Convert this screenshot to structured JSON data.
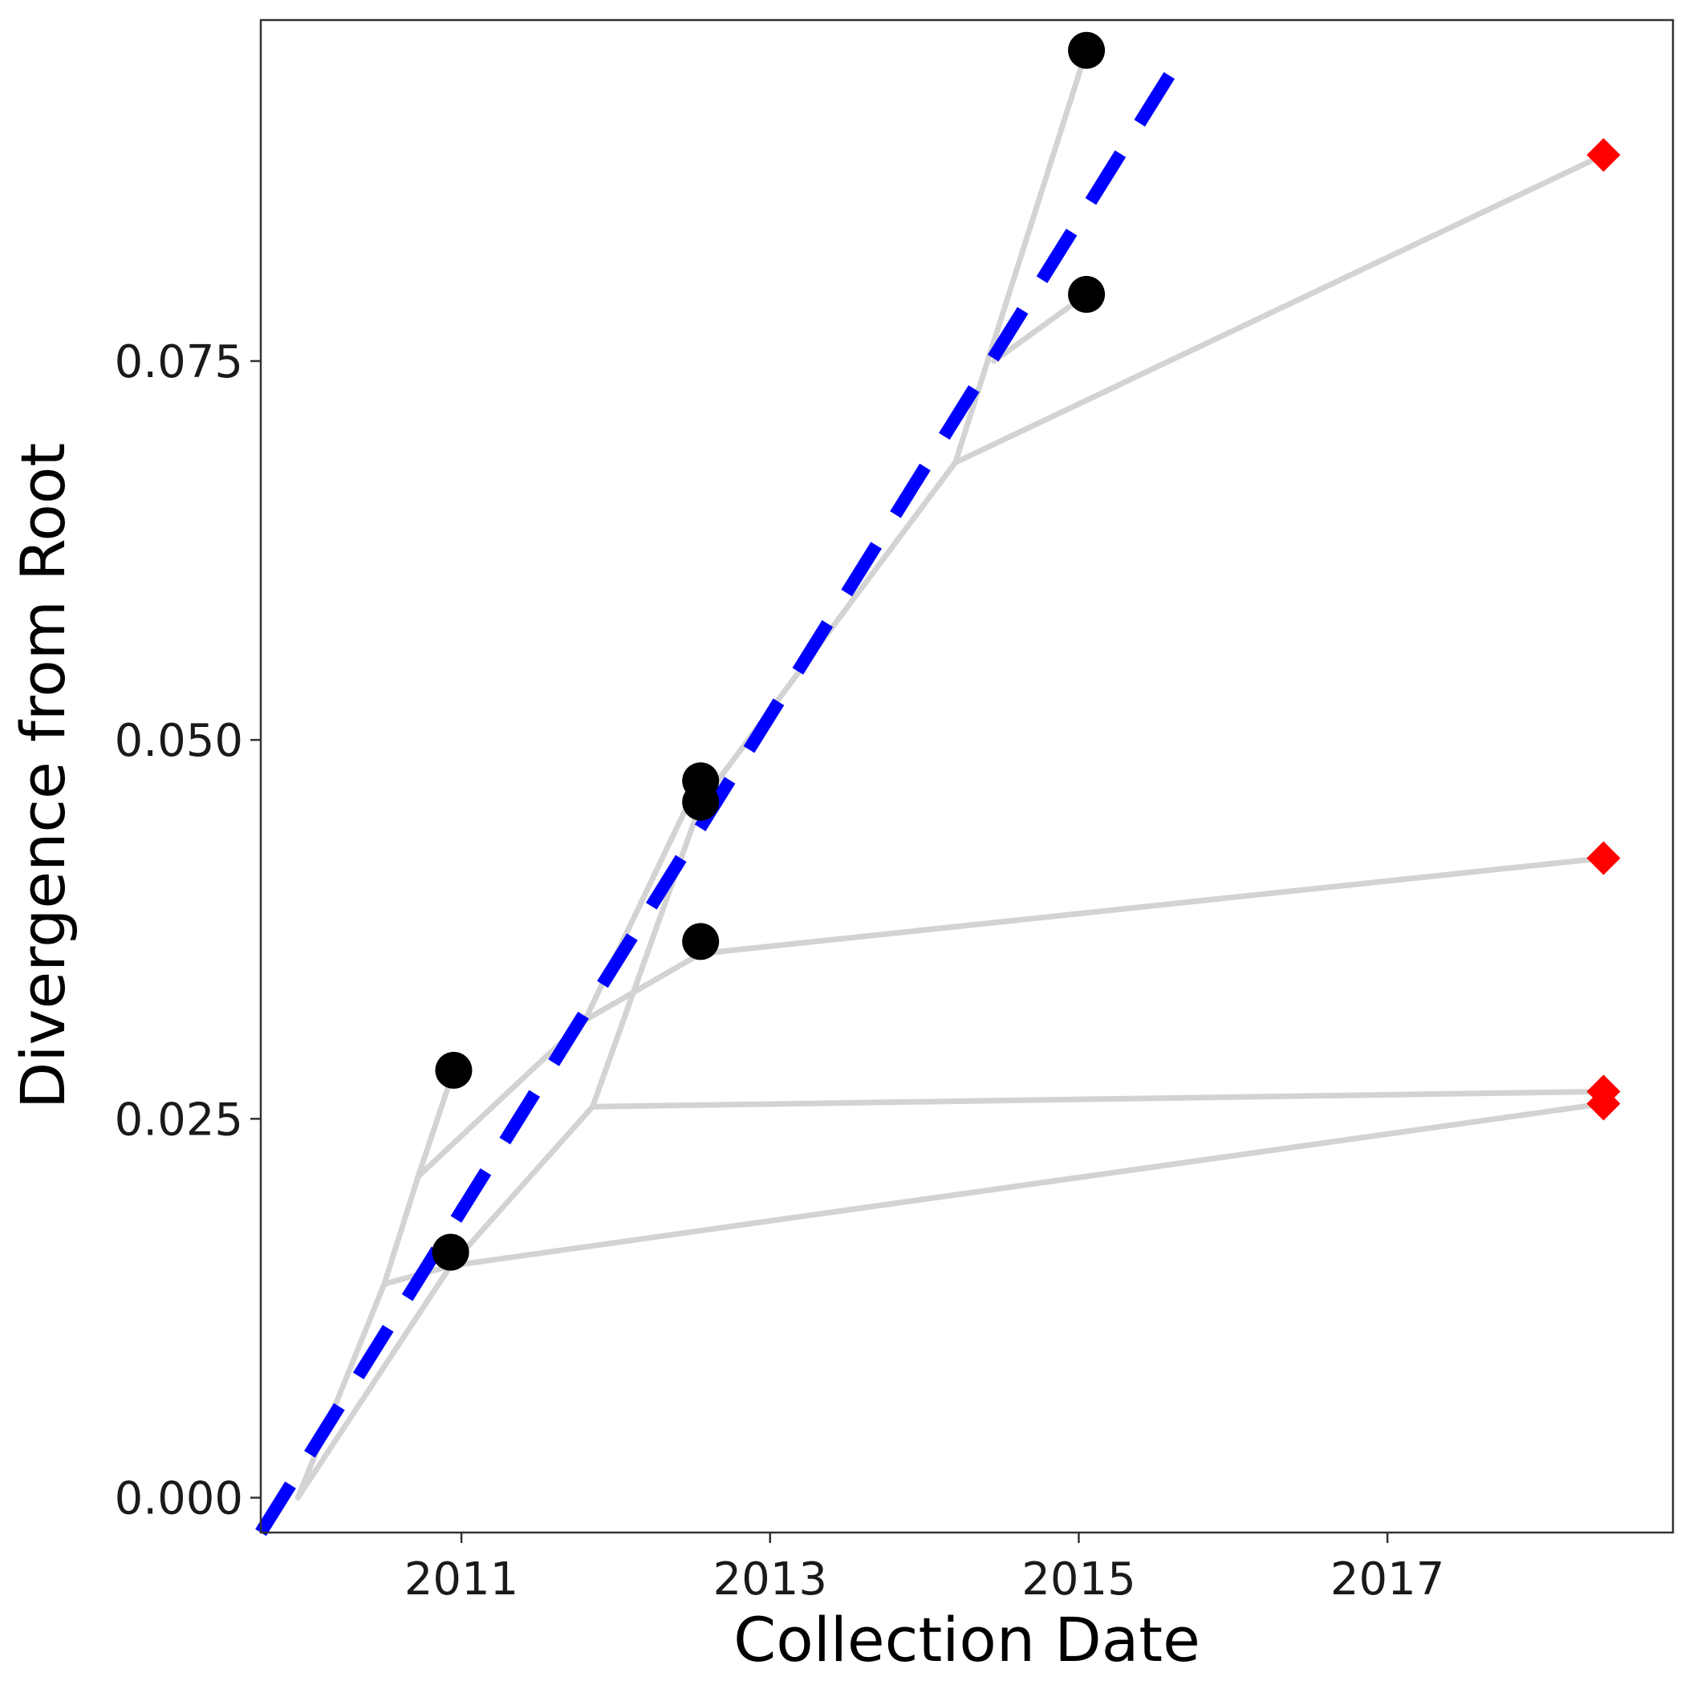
{
  "chart_data": {
    "type": "scatter",
    "xlabel": "Collection Date",
    "ylabel": "Divergence from Root",
    "xlim": [
      2009.7,
      2018.85
    ],
    "ylim": [
      -0.0023,
      0.0975
    ],
    "x_ticks": [
      2011,
      2013,
      2015,
      2017
    ],
    "y_ticks": [
      0.0,
      0.025,
      0.05,
      0.075
    ],
    "x_tick_labels": [
      "2011",
      "2013",
      "2015",
      "2017"
    ],
    "y_tick_labels": [
      "0.000",
      "0.025",
      "0.050",
      "0.075"
    ],
    "grid": false,
    "colors": {
      "tips": "#000000",
      "excluded_tips": "#ff0000",
      "regression": "#0000ff",
      "tree": "#d3d3d3"
    },
    "regression_line": {
      "style": "dashed",
      "points": [
        [
          2009.7,
          -0.0023
        ],
        [
          2015.7,
          0.0957
        ]
      ]
    },
    "tree_edges": [
      [
        [
          2009.94,
          0.0
        ],
        [
          2010.5,
          0.0141
        ]
      ],
      [
        [
          2009.94,
          0.0
        ],
        [
          2010.93,
          0.0153
        ]
      ],
      [
        [
          2010.5,
          0.0141
        ],
        [
          2010.93,
          0.0153
        ]
      ],
      [
        [
          2010.5,
          0.0141
        ],
        [
          2010.72,
          0.0212
        ]
      ],
      [
        [
          2010.72,
          0.0212
        ],
        [
          2010.95,
          0.0282
        ]
      ],
      [
        [
          2010.72,
          0.0212
        ],
        [
          2011.8,
          0.0315
        ]
      ],
      [
        [
          2011.8,
          0.0315
        ],
        [
          2012.55,
          0.0475
        ]
      ],
      [
        [
          2011.8,
          0.0315
        ],
        [
          2012.55,
          0.0359
        ]
      ],
      [
        [
          2010.93,
          0.0153
        ],
        [
          2011.85,
          0.0258
        ]
      ],
      [
        [
          2011.85,
          0.0258
        ],
        [
          2012.55,
          0.0458
        ]
      ],
      [
        [
          2012.55,
          0.0458
        ],
        [
          2014.2,
          0.0683
        ]
      ],
      [
        [
          2014.2,
          0.0683
        ],
        [
          2015.05,
          0.0955
        ]
      ],
      [
        [
          2014.45,
          0.075
        ],
        [
          2015.05,
          0.0794
        ]
      ],
      [
        [
          2014.2,
          0.0683
        ],
        [
          2018.4,
          0.0886
        ]
      ],
      [
        [
          2012.55,
          0.0359
        ],
        [
          2018.4,
          0.0422
        ]
      ],
      [
        [
          2011.85,
          0.0258
        ],
        [
          2018.4,
          0.0268
        ]
      ],
      [
        [
          2010.93,
          0.0153
        ],
        [
          2018.4,
          0.026
        ]
      ]
    ],
    "series": [
      {
        "marker": "circle",
        "color": "#000000",
        "points": [
          [
            2010.95,
            0.0282
          ],
          [
            2010.93,
            0.0162
          ],
          [
            2012.55,
            0.0473
          ],
          [
            2012.55,
            0.0459
          ],
          [
            2012.55,
            0.0367
          ],
          [
            2015.05,
            0.0955
          ],
          [
            2015.05,
            0.0794
          ]
        ]
      },
      {
        "marker": "diamond",
        "color": "#ff0000",
        "points": [
          [
            2018.4,
            0.0886
          ],
          [
            2018.4,
            0.0422
          ],
          [
            2018.4,
            0.0268
          ],
          [
            2018.4,
            0.026
          ]
        ]
      }
    ]
  }
}
